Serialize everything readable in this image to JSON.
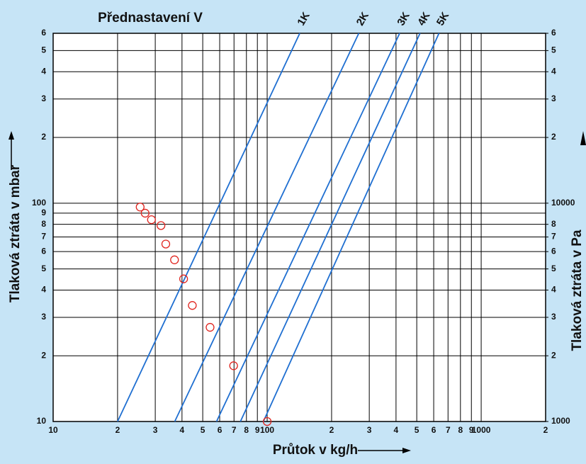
{
  "chart_data": {
    "type": "line",
    "title": "Přednastavení V",
    "xlabel": "Průtok v kg/h",
    "ylabel": "Tlaková ztráta v mbar",
    "y2label": "Tlaková ztráta v Pa",
    "xscale": "log",
    "yscale": "log",
    "grid": true,
    "xlim": [
      10,
      2000
    ],
    "ylim": [
      10,
      600
    ],
    "y2lim": [
      1000,
      60000
    ],
    "xticks": [
      10,
      {
        "value": 20,
        "label": "2"
      },
      {
        "value": 30,
        "label": "3"
      },
      {
        "value": 40,
        "label": "4"
      },
      {
        "value": 50,
        "label": "5"
      },
      {
        "value": 60,
        "label": "6"
      },
      {
        "value": 70,
        "label": "7"
      },
      {
        "value": 80,
        "label": "8"
      },
      {
        "value": 90,
        "label": "9"
      },
      100,
      {
        "value": 200,
        "label": "2"
      },
      {
        "value": 300,
        "label": "3"
      },
      {
        "value": 400,
        "label": "4"
      },
      {
        "value": 500,
        "label": "5"
      },
      {
        "value": 600,
        "label": "6"
      },
      {
        "value": 700,
        "label": "7"
      },
      {
        "value": 800,
        "label": "8"
      },
      {
        "value": 900,
        "label": "9"
      },
      1000,
      {
        "value": 2000,
        "label": "2"
      }
    ],
    "yticks": [
      10,
      {
        "value": 20,
        "label": "2"
      },
      {
        "value": 30,
        "label": "3"
      },
      {
        "value": 40,
        "label": "4"
      },
      {
        "value": 50,
        "label": "5"
      },
      {
        "value": 60,
        "label": "6"
      },
      {
        "value": 70,
        "label": "7"
      },
      {
        "value": 80,
        "label": "8"
      },
      {
        "value": 90,
        "label": "9"
      },
      100,
      {
        "value": 200,
        "label": "2"
      },
      {
        "value": 300,
        "label": "3"
      },
      {
        "value": 400,
        "label": "4"
      },
      {
        "value": 500,
        "label": "5"
      },
      {
        "value": 600,
        "label": "6"
      }
    ],
    "y2ticks": [
      1000,
      {
        "value": 2000,
        "label": "2"
      },
      {
        "value": 3000,
        "label": "3"
      },
      {
        "value": 4000,
        "label": "4"
      },
      {
        "value": 5000,
        "label": "5"
      },
      {
        "value": 6000,
        "label": "6"
      },
      {
        "value": 7000,
        "label": "7"
      },
      {
        "value": 8000,
        "label": "8"
      },
      10000,
      {
        "value": 20000,
        "label": "2"
      },
      {
        "value": 30000,
        "label": "3"
      },
      {
        "value": 40000,
        "label": "4"
      },
      {
        "value": 50000,
        "label": "5"
      },
      {
        "value": 60000,
        "label": "6"
      }
    ],
    "series": [
      {
        "name": "1K",
        "color": "#1f6fd1",
        "x": [
          20,
          142
        ],
        "values": [
          10,
          600
        ]
      },
      {
        "name": "2K",
        "color": "#1f6fd1",
        "x": [
          37,
          268
        ],
        "values": [
          10,
          600
        ]
      },
      {
        "name": "3K",
        "color": "#1f6fd1",
        "x": [
          58,
          416
        ],
        "values": [
          10,
          600
        ]
      },
      {
        "name": "4K",
        "color": "#1f6fd1",
        "x": [
          75,
          518
        ],
        "values": [
          10,
          600
        ]
      },
      {
        "name": "5K",
        "color": "#1f6fd1",
        "x": [
          96,
          635
        ],
        "values": [
          10,
          600
        ]
      }
    ],
    "markers": {
      "color": "#e0251f",
      "x": [
        25.5,
        26.9,
        28.8,
        31.9,
        33.6,
        36.9,
        40.7,
        44.7,
        54.1,
        69.7,
        100
      ],
      "values": [
        96,
        90,
        84,
        79,
        65,
        55,
        45,
        34,
        27,
        18,
        10
      ]
    }
  }
}
